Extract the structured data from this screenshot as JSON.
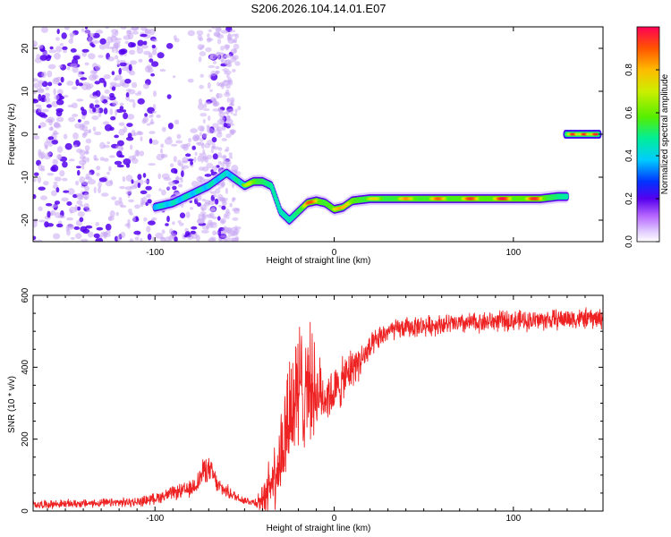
{
  "title": "S206.2026.104.14.01.E07",
  "colors": {
    "snr_line": "#ee2222",
    "spec_dark": "#5500ee",
    "spec_light": "#c8a8f4"
  },
  "chart_data": [
    {
      "type": "heatmap",
      "name": "spectrogram",
      "title": "S206.2026.104.14.01.E07",
      "xlabel": "Height of straight line (km)",
      "ylabel": "Frequency (Hz)",
      "xlim": [
        -168,
        150
      ],
      "ylim": [
        -25,
        25
      ],
      "xticks": [
        -100,
        0,
        100
      ],
      "xtick_labels": [
        "-100",
        "0",
        "100"
      ],
      "yticks": [
        -20,
        -10,
        0,
        10,
        20
      ],
      "ytick_labels": [
        "-20",
        "-10",
        "0",
        "10",
        "20"
      ],
      "colorbar": {
        "label": "Normalized spectral amplitude",
        "range": [
          0,
          1
        ],
        "ticks": [
          0.0,
          0.2,
          0.4,
          0.6,
          0.8
        ],
        "tick_labels": [
          "0.0",
          "0.2",
          "0.4",
          "0.6",
          "0.8"
        ]
      },
      "ridge": {
        "x": [
          -100,
          -90,
          -80,
          -70,
          -60,
          -50,
          -45,
          -40,
          -35,
          -30,
          -25,
          -20,
          -15,
          -10,
          -5,
          0,
          5,
          10,
          20,
          40,
          60,
          80,
          100,
          115,
          125,
          130
        ],
        "y": [
          -17,
          -16,
          -14,
          -12,
          -9,
          -12,
          -11,
          -11,
          -12,
          -18,
          -20,
          -18,
          -16,
          -15.5,
          -16,
          -17.5,
          -17,
          -15.5,
          -15,
          -15,
          -15,
          -15,
          -15,
          -15,
          -14.5,
          -14.5
        ],
        "amplitude": [
          0.3,
          0.35,
          0.35,
          0.4,
          0.3,
          0.6,
          0.8,
          0.7,
          0.5,
          0.4,
          0.4,
          0.65,
          0.85,
          0.9,
          0.8,
          0.9,
          0.75,
          0.9,
          0.7,
          0.8,
          0.85,
          0.9,
          0.95,
          0.9,
          0.6,
          0.45
        ]
      },
      "segment2": {
        "x": [
          129,
          148
        ],
        "y": [
          0,
          0
        ],
        "amplitude": 0.95
      },
      "noise": {
        "region_x": [
          -168,
          -55
        ],
        "region_y": [
          -25,
          25
        ],
        "amplitude": 0.15
      }
    },
    {
      "type": "line",
      "name": "snr",
      "xlabel": "Height of straight line (km)",
      "ylabel": "SNR (10 * v/v)",
      "xlim": [
        -168,
        150
      ],
      "ylim": [
        0,
        600
      ],
      "xticks": [
        -100,
        0,
        100
      ],
      "xtick_labels": [
        "-100",
        "0",
        "100"
      ],
      "yticks": [
        0,
        200,
        400,
        600
      ],
      "ytick_labels": [
        "0",
        "200",
        "400",
        "600"
      ],
      "series": [
        {
          "name": "SNR",
          "x": [
            -168,
            -150,
            -130,
            -110,
            -100,
            -90,
            -80,
            -75,
            -72,
            -68,
            -65,
            -60,
            -55,
            -50,
            -45,
            -40,
            -35,
            -30,
            -25,
            -20,
            -15,
            -10,
            -5,
            0,
            5,
            10,
            15,
            20,
            25,
            30,
            40,
            50,
            60,
            70,
            80,
            90,
            100,
            110,
            120,
            130,
            140,
            150
          ],
          "y": [
            18,
            20,
            22,
            25,
            35,
            50,
            60,
            90,
            120,
            105,
            70,
            55,
            40,
            30,
            25,
            30,
            90,
            150,
            280,
            320,
            380,
            330,
            320,
            330,
            360,
            400,
            420,
            450,
            480,
            500,
            510,
            515,
            520,
            520,
            525,
            528,
            530,
            530,
            532,
            535,
            535,
            535
          ],
          "spread": [
            12,
            12,
            12,
            14,
            16,
            20,
            25,
            35,
            40,
            35,
            25,
            20,
            15,
            12,
            12,
            40,
            90,
            140,
            200,
            220,
            180,
            120,
            80,
            70,
            70,
            60,
            50,
            40,
            35,
            30,
            30,
            30,
            30,
            30,
            30,
            30,
            30,
            30,
            30,
            30,
            30,
            30
          ]
        }
      ]
    }
  ]
}
